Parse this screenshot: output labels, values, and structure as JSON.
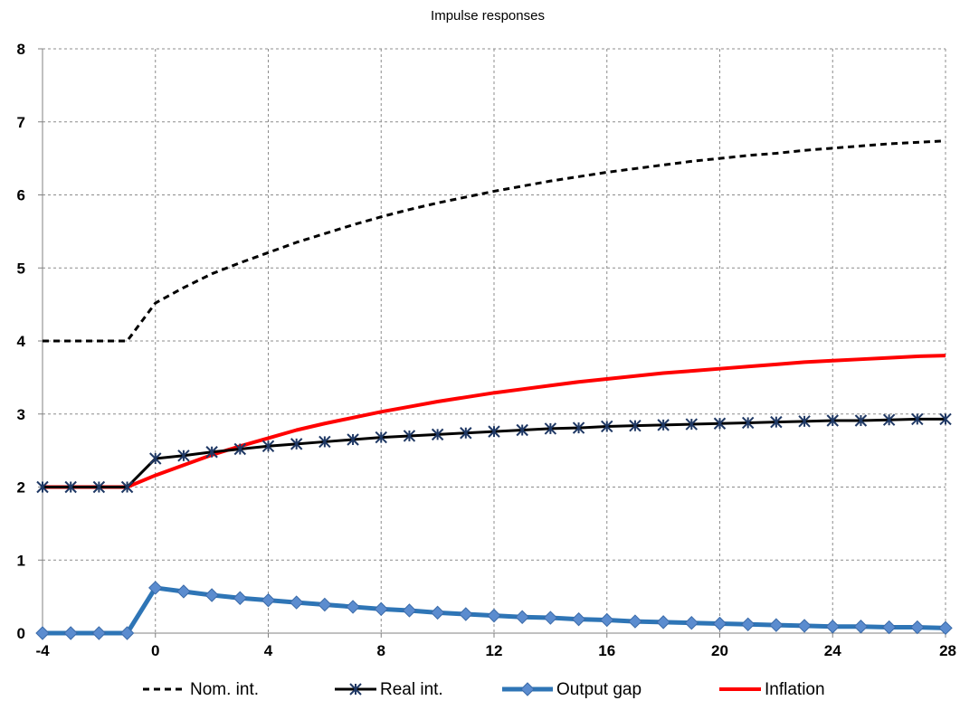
{
  "chart_data": {
    "type": "line",
    "title": "Impulse responses",
    "xlabel": "",
    "ylabel": "",
    "xlim": [
      -4,
      28
    ],
    "ylim": [
      0,
      8
    ],
    "grid": true,
    "legend_position": "bottom",
    "x_ticks": [
      "-4",
      "0",
      "4",
      "8",
      "12",
      "16",
      "20",
      "24",
      "28"
    ],
    "y_ticks": [
      "0",
      "1",
      "2",
      "3",
      "4",
      "5",
      "6",
      "7",
      "8"
    ],
    "x": [
      -4,
      -3,
      -2,
      -1,
      0,
      1,
      2,
      3,
      4,
      5,
      6,
      7,
      8,
      9,
      10,
      11,
      12,
      13,
      14,
      15,
      16,
      17,
      18,
      19,
      20,
      21,
      22,
      23,
      24,
      25,
      26,
      27,
      28
    ],
    "series": [
      {
        "name": "Nom. int.",
        "color": "#000000",
        "style": "dashed",
        "marker": "none",
        "values": [
          4,
          4,
          4,
          4,
          4.52,
          4.73,
          4.92,
          5.07,
          5.21,
          5.35,
          5.47,
          5.59,
          5.7,
          5.8,
          5.89,
          5.97,
          6.05,
          6.12,
          6.19,
          6.25,
          6.31,
          6.36,
          6.41,
          6.46,
          6.5,
          6.54,
          6.57,
          6.61,
          6.64,
          6.67,
          6.7,
          6.72,
          6.74
        ]
      },
      {
        "name": "Real int.",
        "color": "#000000",
        "style": "solid",
        "marker": "star",
        "values": [
          2,
          2,
          2,
          2,
          2.39,
          2.43,
          2.48,
          2.52,
          2.56,
          2.59,
          2.62,
          2.65,
          2.68,
          2.7,
          2.72,
          2.74,
          2.76,
          2.78,
          2.8,
          2.81,
          2.83,
          2.84,
          2.85,
          2.86,
          2.87,
          2.88,
          2.89,
          2.9,
          2.91,
          2.91,
          2.92,
          2.93,
          2.93
        ]
      },
      {
        "name": "Output gap",
        "color": "#2E75B6",
        "style": "solid",
        "marker": "diamond",
        "values": [
          0,
          0,
          0,
          0,
          0.62,
          0.57,
          0.52,
          0.48,
          0.45,
          0.42,
          0.39,
          0.36,
          0.33,
          0.31,
          0.28,
          0.26,
          0.24,
          0.22,
          0.21,
          0.19,
          0.18,
          0.16,
          0.15,
          0.14,
          0.13,
          0.12,
          0.11,
          0.1,
          0.09,
          0.09,
          0.08,
          0.08,
          0.07
        ]
      },
      {
        "name": "Inflation",
        "color": "#FF0000",
        "style": "solid",
        "marker": "none",
        "values": [
          2,
          2,
          2,
          2,
          2.16,
          2.3,
          2.44,
          2.56,
          2.67,
          2.78,
          2.87,
          2.95,
          3.03,
          3.1,
          3.17,
          3.23,
          3.29,
          3.34,
          3.39,
          3.44,
          3.48,
          3.52,
          3.56,
          3.59,
          3.62,
          3.65,
          3.68,
          3.71,
          3.73,
          3.75,
          3.77,
          3.79,
          3.8
        ]
      }
    ]
  }
}
